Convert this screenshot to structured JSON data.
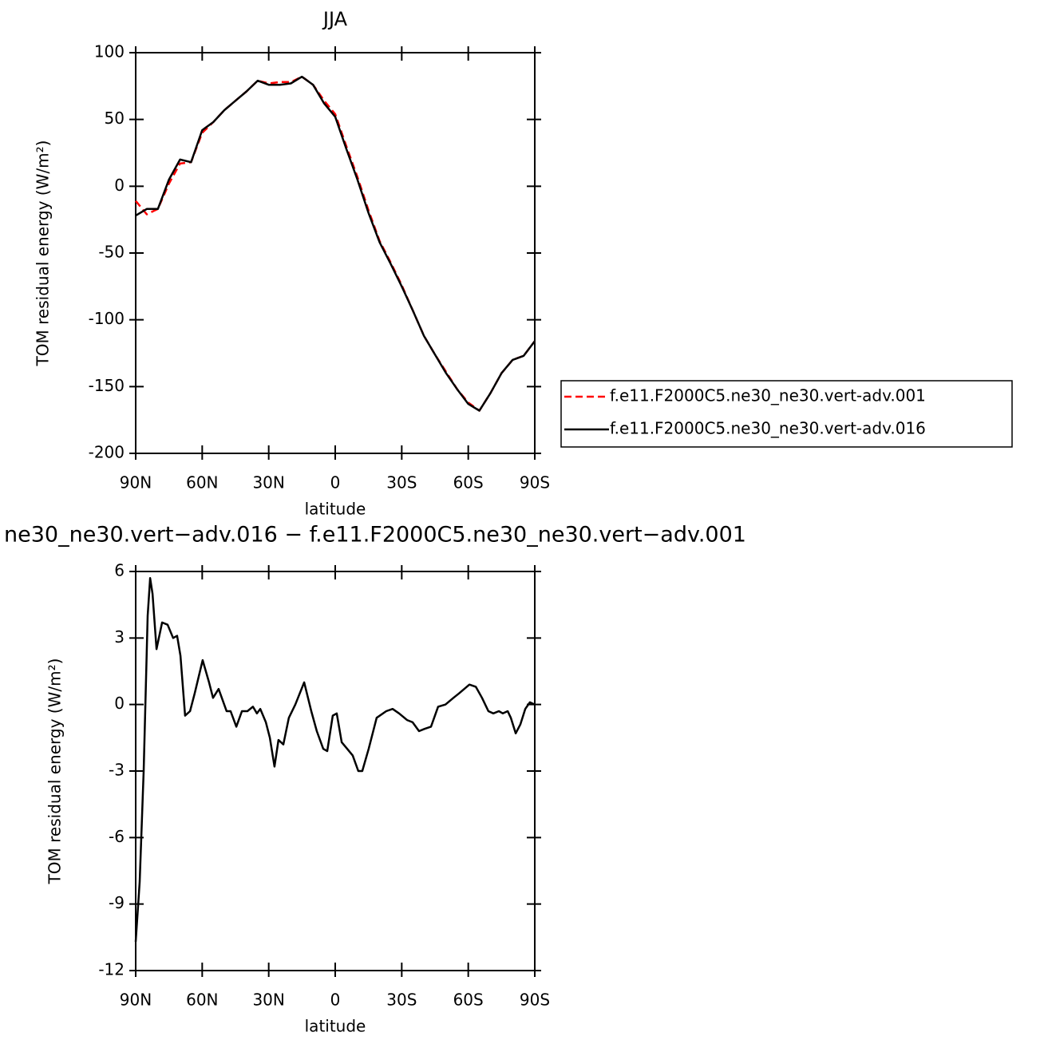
{
  "chart_data": [
    {
      "type": "line",
      "title": "JJA",
      "xlabel": "latitude",
      "ylabel": "TOM residual energy (W/m²)",
      "x": [
        90,
        85,
        80,
        75,
        70,
        65,
        60,
        55,
        50,
        45,
        40,
        35,
        30,
        25,
        20,
        15,
        10,
        5,
        0,
        -5,
        -10,
        -15,
        -20,
        -25,
        -30,
        -35,
        -40,
        -45,
        -50,
        -55,
        -60,
        -65,
        -70,
        -75,
        -80,
        -85,
        -90
      ],
      "xlim": [
        90,
        -90
      ],
      "xticks": [
        {
          "value": 90,
          "label": "90N"
        },
        {
          "value": 60,
          "label": "60N"
        },
        {
          "value": 30,
          "label": "30N"
        },
        0,
        {
          "value": -30,
          "label": "30S"
        },
        {
          "value": -60,
          "label": "60S"
        },
        {
          "value": -90,
          "label": "90S"
        }
      ],
      "ylim": [
        -200,
        100
      ],
      "yticks": [
        -200,
        -150,
        -100,
        -50,
        0,
        50,
        100
      ],
      "series": [
        {
          "name": "f.e11.F2000C5.ne30_ne30.vert-adv.001",
          "color": "#ff0000",
          "style": "dashed",
          "values": [
            -11,
            -21,
            -17,
            2,
            17,
            18,
            40,
            48,
            57,
            64,
            71,
            79,
            77,
            78,
            78,
            82,
            76,
            64,
            54,
            30,
            7,
            -18,
            -41,
            -57,
            -74,
            -93,
            -112,
            -126,
            -139,
            -152,
            -162,
            -168,
            -155,
            -140,
            -130,
            -127,
            -116
          ]
        },
        {
          "name": "f.e11.F2000C5.ne30_ne30.vert-adv.016",
          "color": "#000000",
          "style": "solid",
          "values": [
            -22,
            -17,
            -17,
            5,
            20,
            18,
            42,
            48,
            57,
            64,
            71,
            79,
            76,
            76,
            77,
            82,
            76,
            62,
            52,
            28,
            5,
            -20,
            -42,
            -58,
            -75,
            -93,
            -112,
            -126,
            -140,
            -152,
            -163,
            -168,
            -155,
            -140,
            -130,
            -127,
            -116
          ]
        }
      ]
    },
    {
      "type": "line",
      "title": "ne30_ne30.vert−adv.016 − f.e11.F2000C5.ne30_ne30.vert−adv.001",
      "xlabel": "latitude",
      "ylabel": "TOM residual energy (W/m²)",
      "x": [
        90,
        88.2,
        86.4,
        84.6,
        83.5,
        82.4,
        80.6,
        78.1,
        75.6,
        73.1,
        71.3,
        69.8,
        67.7,
        65.5,
        63.4,
        59.8,
        56.9,
        55.1,
        52.6,
        49,
        47.2,
        44.6,
        42.1,
        39.6,
        37.1,
        35.3,
        33.8,
        31.3,
        29.5,
        27.4,
        25.6,
        23.4,
        20.9,
        18,
        14,
        10.8,
        8.3,
        5.4,
        3.6,
        1.1,
        -0.7,
        -2.9,
        -5.4,
        -7.9,
        -10.4,
        -12.2,
        -15.1,
        -18.7,
        -23,
        -25.9,
        -28.8,
        -32.4,
        -34.9,
        -37.8,
        -40.3,
        -43.2,
        -46.4,
        -49.7,
        -53.3,
        -55.8,
        -60.5,
        -63.4,
        -66.2,
        -69.1,
        -71.3,
        -73.8,
        -75.6,
        -77.8,
        -79.2,
        -81.4,
        -83.5,
        -85.7,
        -87.8,
        -90
      ],
      "values": [
        -10.7,
        -8,
        -3,
        4,
        5.7,
        5,
        2.5,
        3.7,
        3.6,
        3,
        3.1,
        2.2,
        -0.5,
        -0.3,
        0.5,
        2,
        1,
        0.3,
        0.7,
        -0.3,
        -0.3,
        -1,
        -0.3,
        -0.3,
        -0.1,
        -0.4,
        -0.2,
        -0.8,
        -1.5,
        -2.8,
        -1.6,
        -1.8,
        -0.6,
        0,
        1,
        -0.3,
        -1.2,
        -2,
        -2.1,
        -0.5,
        -0.4,
        -1.7,
        -2,
        -2.3,
        -3,
        -3,
        -2,
        -0.6,
        -0.3,
        -0.2,
        -0.4,
        -0.7,
        -0.8,
        -1.2,
        -1.1,
        -1,
        -0.1,
        0,
        0.3,
        0.5,
        0.9,
        0.8,
        0.3,
        -0.3,
        -0.4,
        -0.3,
        -0.4,
        -0.3,
        -0.6,
        -1.3,
        -0.9,
        -0.2,
        0.1,
        0
      ],
      "color": "#000000",
      "xlim": [
        90,
        -90
      ],
      "xticks": [
        {
          "value": 90,
          "label": "90N"
        },
        {
          "value": 60,
          "label": "60N"
        },
        {
          "value": 30,
          "label": "30N"
        },
        0,
        {
          "value": -30,
          "label": "30S"
        },
        {
          "value": -60,
          "label": "60S"
        },
        {
          "value": -90,
          "label": "90S"
        }
      ],
      "ylim": [
        -12,
        6
      ],
      "yticks": [
        -12,
        -9,
        -6,
        -3,
        0,
        3,
        6
      ]
    }
  ]
}
